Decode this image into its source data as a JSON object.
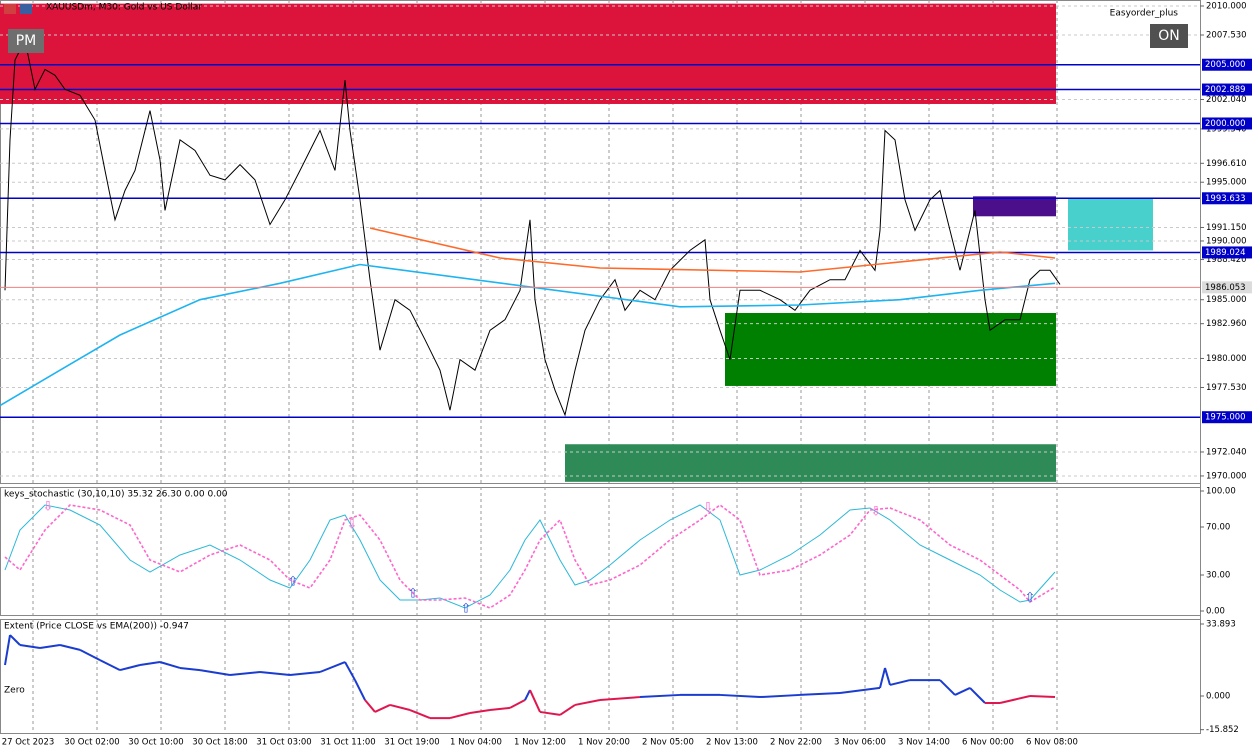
{
  "header": {
    "symbol_title": "XAUUSDm, M30:  Gold vs US Dollar",
    "expert": "Easyorder_plus",
    "left_button": "PM",
    "right_button": "ON"
  },
  "chart_data": [
    {
      "type": "line",
      "title": "XAUUSDm, M30:  Gold vs US Dollar",
      "xlim": [
        0,
        240
      ],
      "ylim": [
        1969.4,
        2010.51
      ],
      "grid": true,
      "xticks": [
        {
          "value": 6.6,
          "label": "27 Oct 2023"
        },
        {
          "value": 19.4,
          "label": "30 Oct 02:00"
        },
        {
          "value": 32.2,
          "label": "30 Oct 10:00"
        },
        {
          "value": 45,
          "label": "30 Oct 18:00"
        },
        {
          "value": 57.8,
          "label": "31 Oct 03:00"
        },
        {
          "value": 70.6,
          "label": "31 Oct 11:00"
        },
        {
          "value": 83.4,
          "label": "31 Oct 19:00"
        },
        {
          "value": 96.2,
          "label": "1 Nov 04:00"
        },
        {
          "value": 109,
          "label": "1 Nov 12:00"
        },
        {
          "value": 121.8,
          "label": "1 Nov 20:00"
        },
        {
          "value": 134.6,
          "label": "2 Nov 05:00"
        },
        {
          "value": 147.4,
          "label": "2 Nov 13:00"
        },
        {
          "value": 160.2,
          "label": "2 Nov 22:00"
        },
        {
          "value": 173,
          "label": "3 Nov 06:00"
        },
        {
          "value": 185.8,
          "label": "3 Nov 14:00"
        },
        {
          "value": 198.6,
          "label": "6 Nov 00:00"
        },
        {
          "value": 211.4,
          "label": "6 Nov 08:00"
        }
      ],
      "yticks": [
        {
          "value": 2010,
          "label": "2010.000"
        },
        {
          "value": 2007.53,
          "label": "2007.530"
        },
        {
          "value": 2002.04,
          "label": "2002.040"
        },
        {
          "value": 1999.54,
          "label": "1999.540"
        },
        {
          "value": 1996.61,
          "label": "1996.610"
        },
        {
          "value": 1995,
          "label": "1995.000"
        },
        {
          "value": 1991.15,
          "label": "1991.150"
        },
        {
          "value": 1990,
          "label": "1990.000"
        },
        {
          "value": 1988.42,
          "label": "1988.420"
        },
        {
          "value": 1985,
          "label": "1985.000"
        },
        {
          "value": 1982.96,
          "label": "1982.960"
        },
        {
          "value": 1980,
          "label": "1980.000"
        },
        {
          "value": 1977.53,
          "label": "1977.530"
        },
        {
          "value": 1972.04,
          "label": "1972.040"
        },
        {
          "value": 1970,
          "label": "1970.000"
        }
      ],
      "levels": [
        {
          "value": 2005,
          "label": "2005.000"
        },
        {
          "value": 2002.889,
          "label": "2002.889"
        },
        {
          "value": 2000,
          "label": "2000.000"
        },
        {
          "value": 1993.633,
          "label": "1993.633"
        },
        {
          "value": 1989.024,
          "label": "1989.024"
        },
        {
          "value": 1975,
          "label": "1975.000"
        }
      ],
      "level_color": "#0000c8",
      "price_line": {
        "value": 1986.053,
        "label": "1986.053",
        "color": "#f08080"
      },
      "zones": [
        {
          "x0": 0,
          "x1": 211.2,
          "y0": 2001.66,
          "y1": 2010.2,
          "color": "#dc143c"
        },
        {
          "x0": 194.6,
          "x1": 211.2,
          "y0": 1992.1,
          "y1": 1993.8,
          "color": "#4b0f8c"
        },
        {
          "x0": 213.6,
          "x1": 230.6,
          "y0": 1989.2,
          "y1": 1993.66,
          "color": "#48d1cc"
        },
        {
          "x0": 145,
          "x1": 211.2,
          "y0": 1977.66,
          "y1": 1983.87,
          "color": "#008000"
        },
        {
          "x0": 113,
          "x1": 211.2,
          "y0": 1969.5,
          "y1": 1972.7,
          "color": "#2e8b57"
        }
      ],
      "series": [
        {
          "color": "#000000",
          "x": [
            1,
            2,
            3,
            5,
            7,
            9,
            11,
            13,
            16,
            19,
            21,
            23,
            25,
            27,
            30,
            32,
            33,
            36,
            39,
            42,
            45,
            48,
            51,
            54,
            57,
            60,
            64,
            67,
            69,
            70,
            72,
            74,
            76,
            79,
            82,
            85,
            88,
            90,
            92,
            95,
            98,
            101,
            104,
            106,
            107,
            109,
            111,
            113,
            115,
            117,
            120,
            123,
            125,
            128,
            131,
            134,
            138,
            141,
            142,
            144,
            146,
            148,
            152,
            156,
            159,
            162,
            166,
            169,
            172,
            175,
            176,
            177,
            179,
            181,
            183,
            186,
            188,
            190,
            192,
            194,
            195,
            197,
            198,
            201,
            204,
            206,
            208,
            210,
            212
          ],
          "values": [
            1985.8,
            1998.6,
            2005.4,
            2007.1,
            2002.9,
            2004.6,
            2004.1,
            2002.9,
            2002.4,
            2000.3,
            1996.0,
            1991.8,
            1994.3,
            1996.0,
            2001.1,
            1996.9,
            1992.6,
            1998.6,
            1997.7,
            1995.6,
            1995.2,
            1996.5,
            1995.2,
            1991.4,
            1993.5,
            1996.0,
            1999.4,
            1996.0,
            2003.7,
            1999.4,
            1993.5,
            1986.7,
            1980.7,
            1985.0,
            1984.1,
            1981.6,
            1979.0,
            1975.6,
            1979.9,
            1979.0,
            1982.4,
            1983.3,
            1985.8,
            1991.8,
            1985.0,
            1979.9,
            1977.3,
            1975.2,
            1979.0,
            1982.4,
            1985.0,
            1986.7,
            1984.1,
            1985.8,
            1985.0,
            1987.5,
            1989.2,
            1990.1,
            1985.0,
            1982.4,
            1979.9,
            1985.8,
            1985.8,
            1985.0,
            1984.1,
            1985.8,
            1986.7,
            1986.7,
            1989.2,
            1987.5,
            1990.9,
            1999.4,
            1998.6,
            1993.5,
            1990.9,
            1993.5,
            1994.3,
            1990.9,
            1987.5,
            1990.9,
            1992.6,
            1985.0,
            1982.4,
            1983.3,
            1983.3,
            1986.7,
            1987.5,
            1987.5,
            1986.3
          ]
        },
        {
          "color": "#ff6a2a",
          "x": [
            74,
            100,
            120,
            160,
            200,
            211
          ],
          "values": [
            1991.1,
            1988.55,
            1987.7,
            1987.36,
            1989.06,
            1988.55
          ]
        },
        {
          "color": "#1eb4f0",
          "x": [
            0,
            12,
            24,
            40,
            56,
            72,
            136,
            160,
            180,
            196,
            211
          ],
          "values": [
            1976.0,
            1979.0,
            1982.0,
            1985.0,
            1986.4,
            1988.0,
            1984.4,
            1984.55,
            1985.0,
            1985.8,
            1986.4
          ]
        }
      ]
    },
    {
      "type": "line",
      "title": "keys_stochastic (30,10,10) 35.32 26.30 0.00 0.00",
      "xlim": [
        0,
        240
      ],
      "ylim": [
        -3.33,
        103.33
      ],
      "yticks": [
        {
          "value": 100,
          "label": "100.00"
        },
        {
          "value": 70,
          "label": "70.00"
        },
        {
          "value": 30,
          "label": "30.00"
        },
        {
          "value": 0,
          "label": "0.00"
        }
      ],
      "series": [
        {
          "color": "#2ab8d8",
          "x": [
            1,
            4,
            9,
            14,
            20,
            26,
            30,
            36,
            42,
            48,
            54,
            58,
            62,
            66,
            69,
            72,
            76,
            80,
            84,
            88,
            93,
            98,
            102,
            105,
            108,
            112,
            115,
            118,
            122,
            128,
            134,
            140,
            144,
            148,
            152,
            158,
            164,
            170,
            174,
            178,
            184,
            190,
            196,
            200,
            204,
            206,
            211
          ],
          "values": [
            34.2,
            67.5,
            88.3,
            84.2,
            71.7,
            42.5,
            32.5,
            46.7,
            55.0,
            42.5,
            25.8,
            19.2,
            42.5,
            75.8,
            80.0,
            59.2,
            25.8,
            9.2,
            9.2,
            10.8,
            2.5,
            13.3,
            34.2,
            59.2,
            75.8,
            42.5,
            21.7,
            25.8,
            38.3,
            59.2,
            75.8,
            88.3,
            75.8,
            30.0,
            34.2,
            46.7,
            63.3,
            84.2,
            85.8,
            75.8,
            55.0,
            42.5,
            30.0,
            17.5,
            7.5,
            9.2,
            32.5
          ]
        },
        {
          "color": "#ff66cc",
          "dashed": true,
          "x": [
            1,
            4,
            9,
            14,
            20,
            26,
            30,
            36,
            42,
            48,
            54,
            58,
            62,
            66,
            69,
            72,
            76,
            80,
            84,
            88,
            93,
            98,
            102,
            105,
            108,
            112,
            115,
            118,
            122,
            128,
            134,
            140,
            144,
            148,
            152,
            158,
            164,
            170,
            174,
            178,
            184,
            190,
            196,
            200,
            204,
            206,
            211
          ],
          "values": [
            45.0,
            34.2,
            67.5,
            88.3,
            84.2,
            71.7,
            42.5,
            32.5,
            46.7,
            55.0,
            42.5,
            25.8,
            19.2,
            42.5,
            75.8,
            80.0,
            59.2,
            25.8,
            9.2,
            9.2,
            10.8,
            2.5,
            13.3,
            34.2,
            59.2,
            75.8,
            42.5,
            21.7,
            25.8,
            38.3,
            59.2,
            75.8,
            88.3,
            75.8,
            30.0,
            34.2,
            46.7,
            63.3,
            84.2,
            85.8,
            75.8,
            55.0,
            42.5,
            30.0,
            17.5,
            7.5,
            20.0
          ]
        }
      ]
    },
    {
      "type": "line",
      "title": "Extent (Price CLOSE vs EMA(200)) -0.947",
      "zero_label": "Zero",
      "xlim": [
        0,
        240
      ],
      "ylim": [
        -17.42,
        36.25
      ],
      "yticks": [
        33.893,
        {
          "value": 0,
          "label": "0.000"
        },
        -15.852
      ],
      "above_color": "#1a3cd0",
      "below_color": "#e0174f",
      "series": [
        {
          "x": [
            1,
            2,
            4,
            8,
            12,
            16,
            20,
            24,
            28,
            32,
            36,
            40,
            46,
            52,
            58,
            64,
            69,
            71,
            73,
            75,
            78,
            82,
            86,
            90,
            94,
            98,
            102,
            105,
            106,
            108,
            112,
            115,
            120,
            128,
            136,
            144,
            152,
            160,
            168,
            176,
            177,
            178,
            182,
            188,
            191,
            194,
            197,
            200,
            206,
            211
          ],
          "values": [
            14.6,
            28.7,
            24.0,
            22.6,
            24.0,
            21.7,
            16.9,
            12.2,
            14.6,
            16.0,
            13.2,
            12.2,
            9.9,
            11.3,
            9.9,
            11.3,
            16.0,
            7.5,
            -1.9,
            -7.5,
            -4.2,
            -6.6,
            -10.4,
            -10.4,
            -8.0,
            -6.6,
            -5.6,
            -1.9,
            2.8,
            -7.5,
            -8.9,
            -4.2,
            -1.9,
            -0.5,
            0.5,
            0.5,
            -0.5,
            0.5,
            1.4,
            3.8,
            13.2,
            5.2,
            7.5,
            7.5,
            0.5,
            3.8,
            -3.3,
            -3.3,
            0.0,
            -0.5
          ]
        }
      ]
    }
  ]
}
